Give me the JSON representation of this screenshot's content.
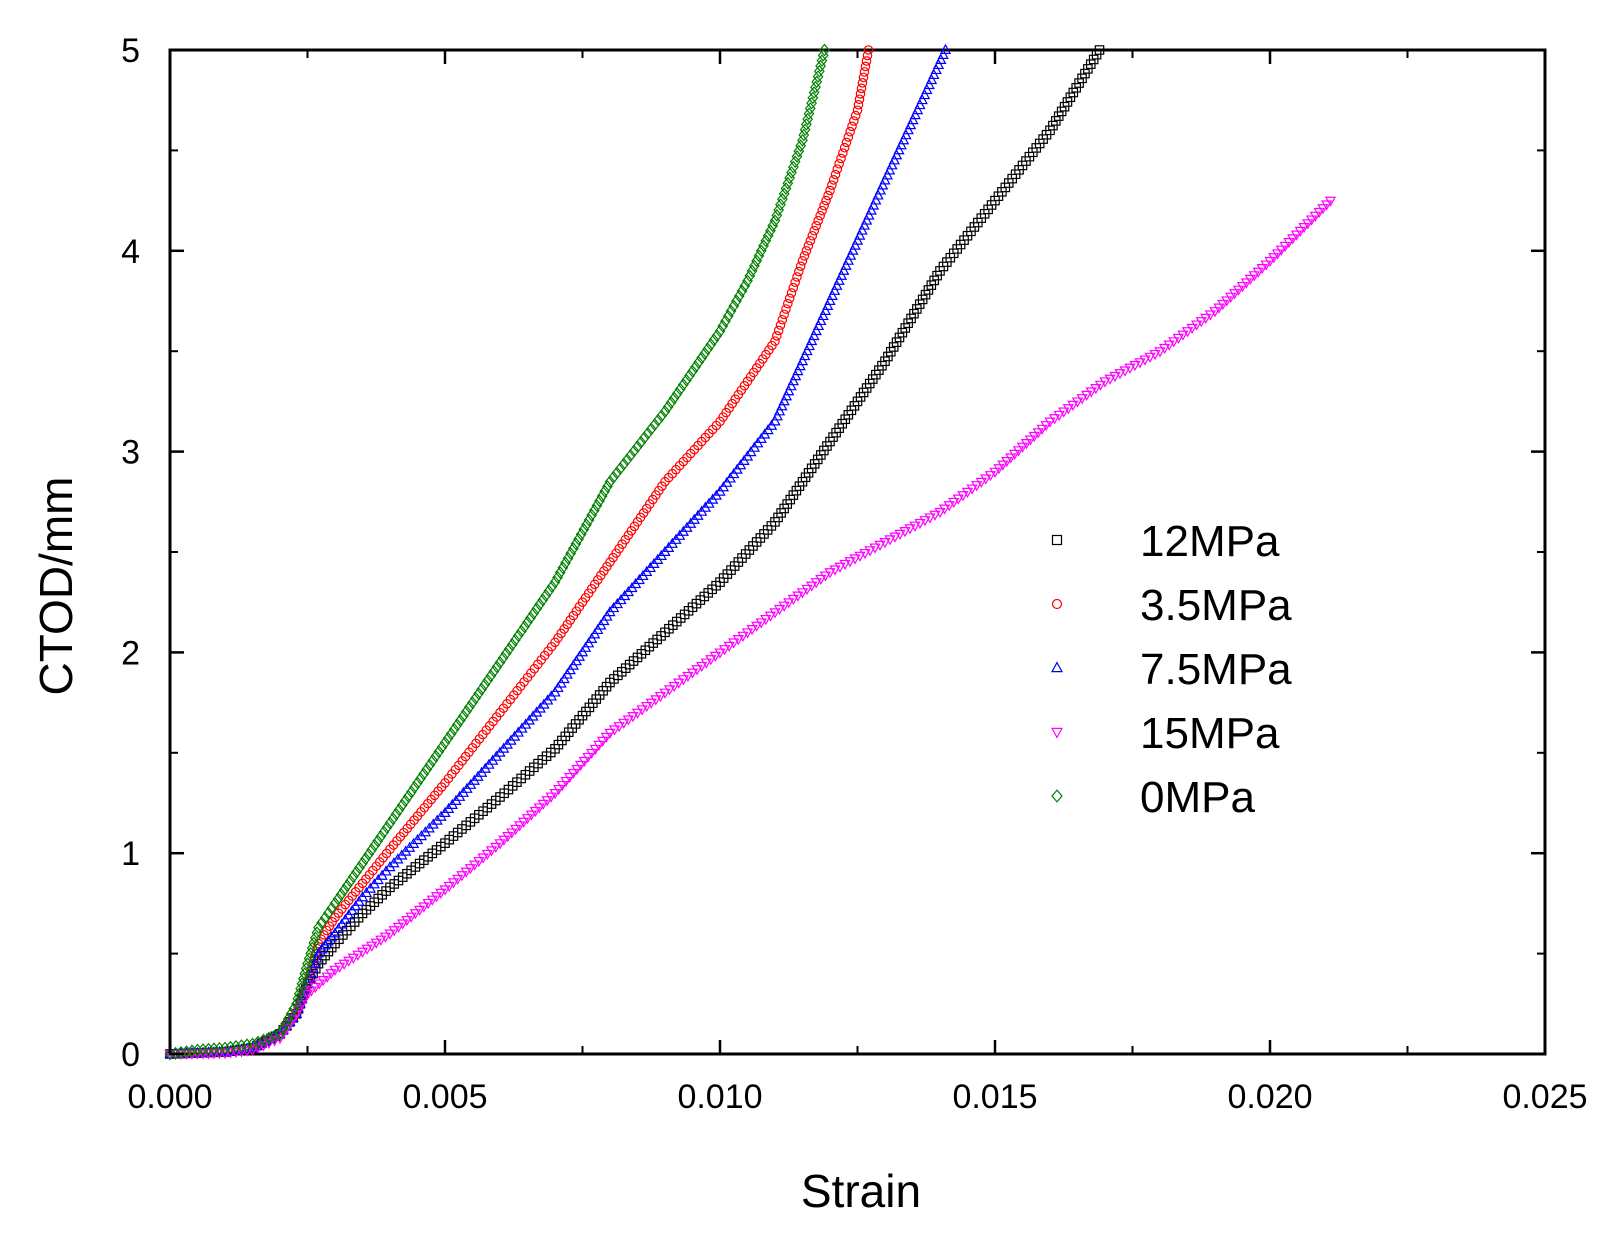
{
  "chart_data": {
    "type": "scatter",
    "title": "",
    "xlabel": "Strain",
    "ylabel": "CTOD/mm",
    "xlim": [
      0.0,
      0.025
    ],
    "ylim": [
      0,
      5
    ],
    "x_ticks": [
      "0.000",
      "0.005",
      "0.010",
      "0.015",
      "0.020",
      "0.025"
    ],
    "y_ticks": [
      "0",
      "1",
      "2",
      "3",
      "4",
      "5"
    ],
    "grid": false,
    "legend_position": "center-right",
    "series": [
      {
        "name": "12MPa",
        "color": "#000000",
        "marker": "square",
        "points": [
          [
            0.0,
            0.0
          ],
          [
            0.001,
            0.01
          ],
          [
            0.0015,
            0.03
          ],
          [
            0.002,
            0.1
          ],
          [
            0.0023,
            0.2
          ],
          [
            0.0025,
            0.35
          ],
          [
            0.0027,
            0.45
          ],
          [
            0.003,
            0.55
          ],
          [
            0.0035,
            0.7
          ],
          [
            0.004,
            0.83
          ],
          [
            0.005,
            1.05
          ],
          [
            0.006,
            1.28
          ],
          [
            0.007,
            1.52
          ],
          [
            0.008,
            1.85
          ],
          [
            0.009,
            2.1
          ],
          [
            0.01,
            2.35
          ],
          [
            0.011,
            2.65
          ],
          [
            0.012,
            3.05
          ],
          [
            0.013,
            3.45
          ],
          [
            0.014,
            3.9
          ],
          [
            0.015,
            4.25
          ],
          [
            0.016,
            4.6
          ],
          [
            0.0169,
            5.0
          ]
        ]
      },
      {
        "name": "3.5MPa",
        "color": "#ff0000",
        "marker": "circle",
        "points": [
          [
            0.0,
            0.0
          ],
          [
            0.001,
            0.01
          ],
          [
            0.0015,
            0.03
          ],
          [
            0.002,
            0.1
          ],
          [
            0.0023,
            0.2
          ],
          [
            0.0025,
            0.35
          ],
          [
            0.0027,
            0.55
          ],
          [
            0.003,
            0.68
          ],
          [
            0.0035,
            0.85
          ],
          [
            0.004,
            1.02
          ],
          [
            0.005,
            1.35
          ],
          [
            0.006,
            1.7
          ],
          [
            0.007,
            2.05
          ],
          [
            0.008,
            2.45
          ],
          [
            0.009,
            2.85
          ],
          [
            0.01,
            3.15
          ],
          [
            0.011,
            3.55
          ],
          [
            0.0115,
            3.95
          ],
          [
            0.012,
            4.3
          ],
          [
            0.0125,
            4.7
          ],
          [
            0.0127,
            5.0
          ]
        ]
      },
      {
        "name": "7.5MPa",
        "color": "#0000ff",
        "marker": "triangle-up",
        "points": [
          [
            0.0,
            0.0
          ],
          [
            0.001,
            0.01
          ],
          [
            0.0015,
            0.03
          ],
          [
            0.002,
            0.1
          ],
          [
            0.0023,
            0.2
          ],
          [
            0.0025,
            0.35
          ],
          [
            0.0027,
            0.5
          ],
          [
            0.003,
            0.6
          ],
          [
            0.0035,
            0.78
          ],
          [
            0.004,
            0.93
          ],
          [
            0.005,
            1.2
          ],
          [
            0.006,
            1.5
          ],
          [
            0.007,
            1.8
          ],
          [
            0.008,
            2.2
          ],
          [
            0.009,
            2.5
          ],
          [
            0.01,
            2.8
          ],
          [
            0.011,
            3.15
          ],
          [
            0.012,
            3.75
          ],
          [
            0.013,
            4.35
          ],
          [
            0.0141,
            5.0
          ]
        ]
      },
      {
        "name": "15MPa",
        "color": "#ff00ff",
        "marker": "triangle-down",
        "points": [
          [
            0.0,
            0.0
          ],
          [
            0.001,
            0.005
          ],
          [
            0.0015,
            0.02
          ],
          [
            0.002,
            0.08
          ],
          [
            0.0023,
            0.2
          ],
          [
            0.0025,
            0.3
          ],
          [
            0.003,
            0.42
          ],
          [
            0.004,
            0.6
          ],
          [
            0.005,
            0.82
          ],
          [
            0.006,
            1.05
          ],
          [
            0.007,
            1.3
          ],
          [
            0.008,
            1.6
          ],
          [
            0.009,
            1.8
          ],
          [
            0.01,
            2.0
          ],
          [
            0.011,
            2.2
          ],
          [
            0.012,
            2.4
          ],
          [
            0.013,
            2.55
          ],
          [
            0.014,
            2.7
          ],
          [
            0.015,
            2.9
          ],
          [
            0.016,
            3.15
          ],
          [
            0.017,
            3.35
          ],
          [
            0.018,
            3.5
          ],
          [
            0.019,
            3.7
          ],
          [
            0.02,
            3.95
          ],
          [
            0.0211,
            4.25
          ]
        ]
      },
      {
        "name": "0MPa",
        "color": "#008000",
        "marker": "diamond",
        "points": [
          [
            0.0,
            0.0
          ],
          [
            0.0005,
            0.02
          ],
          [
            0.001,
            0.03
          ],
          [
            0.0015,
            0.05
          ],
          [
            0.002,
            0.1
          ],
          [
            0.0023,
            0.25
          ],
          [
            0.0025,
            0.45
          ],
          [
            0.0027,
            0.63
          ],
          [
            0.003,
            0.75
          ],
          [
            0.0035,
            0.95
          ],
          [
            0.004,
            1.15
          ],
          [
            0.005,
            1.55
          ],
          [
            0.006,
            1.95
          ],
          [
            0.007,
            2.35
          ],
          [
            0.008,
            2.85
          ],
          [
            0.009,
            3.2
          ],
          [
            0.01,
            3.6
          ],
          [
            0.0105,
            3.85
          ],
          [
            0.011,
            4.15
          ],
          [
            0.0115,
            4.55
          ],
          [
            0.0119,
            5.0
          ]
        ]
      }
    ]
  }
}
